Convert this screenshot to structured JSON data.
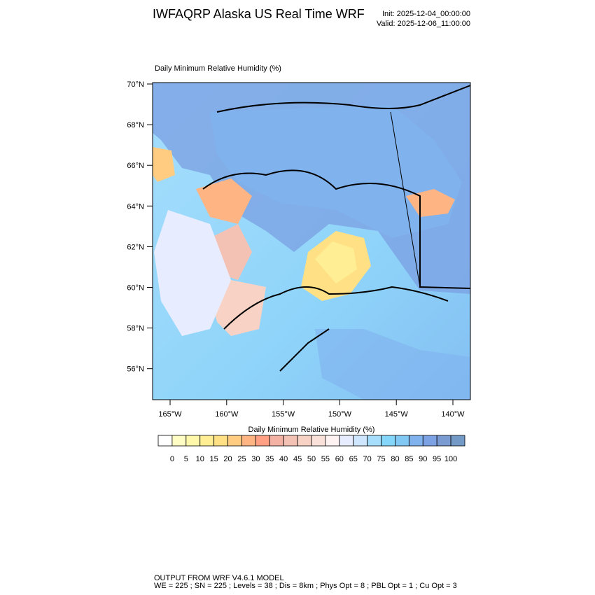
{
  "header": {
    "title": "IWFAQRP Alaska US Real Time WRF",
    "init": "Init: 2025-12-04_00:00:00",
    "valid": "Valid: 2025-12-06_11:00:00"
  },
  "map": {
    "subtitle": "Daily Minimum Relative Humidity   (%)",
    "lat_labels": [
      "70°N",
      "68°N",
      "66°N",
      "64°N",
      "62°N",
      "60°N",
      "58°N",
      "56°N"
    ],
    "lon_labels": [
      "165°W",
      "160°W",
      "155°W",
      "150°W",
      "145°W",
      "140°W"
    ]
  },
  "colorbar": {
    "title": "Daily Minimum Relative Humidity  (%)",
    "levels": [
      "0",
      "5",
      "10",
      "15",
      "20",
      "25",
      "30",
      "35",
      "40",
      "45",
      "50",
      "55",
      "60",
      "65",
      "70",
      "75",
      "80",
      "85",
      "90",
      "95",
      "100"
    ],
    "colors": [
      "#ffffff",
      "#fffdc4",
      "#fff8aa",
      "#ffee94",
      "#ffe084",
      "#ffcc82",
      "#ffb484",
      "#ff9f84",
      "#f3b2a4",
      "#f4c2b4",
      "#f8d2c4",
      "#fae2da",
      "#fff2f2",
      "#e8ecff",
      "#cfe6ff",
      "#a6defc",
      "#84d6fa",
      "#82c8f4",
      "#80b2ee",
      "#7ca2e4",
      "#7a9ad2",
      "#739ac6"
    ]
  },
  "footer": {
    "line1": "OUTPUT FROM WRF V4.6.1 MODEL",
    "line2": "WE = 225 ; SN = 225 ; Levels = 38 ; Dis = 8km ; Phys Opt = 8 ; PBL Opt = 1 ; Cu Opt = 3"
  }
}
